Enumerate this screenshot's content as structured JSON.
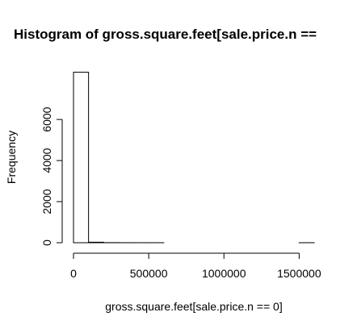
{
  "chart_data": {
    "type": "bar",
    "title": "Histogram of gross.square.feet[sale.price.n ==",
    "xlabel": "gross.square.feet[sale.price.n == 0]",
    "ylabel": "Frequency",
    "xlim": [
      0,
      1600000
    ],
    "ylim": [
      0,
      8400
    ],
    "x_ticks": [
      0,
      500000,
      1000000,
      1500000
    ],
    "x_tick_labels": [
      "0",
      "500000",
      "1000000",
      "1500000"
    ],
    "y_ticks": [
      0,
      2000,
      4000,
      6000
    ],
    "y_tick_labels": [
      "0",
      "2000",
      "4000",
      "6000"
    ],
    "bin_width": 100000,
    "bins": [
      {
        "start": 0,
        "end": 100000,
        "count": 8300
      },
      {
        "start": 100000,
        "end": 200000,
        "count": 25
      },
      {
        "start": 200000,
        "end": 300000,
        "count": 5
      },
      {
        "start": 300000,
        "end": 400000,
        "count": 2
      },
      {
        "start": 400000,
        "end": 500000,
        "count": 1
      },
      {
        "start": 500000,
        "end": 600000,
        "count": 1
      },
      {
        "start": 600000,
        "end": 700000,
        "count": 0
      },
      {
        "start": 700000,
        "end": 800000,
        "count": 0
      },
      {
        "start": 800000,
        "end": 900000,
        "count": 0
      },
      {
        "start": 900000,
        "end": 1000000,
        "count": 0
      },
      {
        "start": 1000000,
        "end": 1100000,
        "count": 0
      },
      {
        "start": 1100000,
        "end": 1200000,
        "count": 0
      },
      {
        "start": 1200000,
        "end": 1300000,
        "count": 0
      },
      {
        "start": 1300000,
        "end": 1400000,
        "count": 0
      },
      {
        "start": 1400000,
        "end": 1500000,
        "count": 0
      },
      {
        "start": 1500000,
        "end": 1600000,
        "count": 1
      }
    ],
    "grid": false,
    "bar_fill": "#ffffff",
    "bar_stroke": "#000000"
  }
}
